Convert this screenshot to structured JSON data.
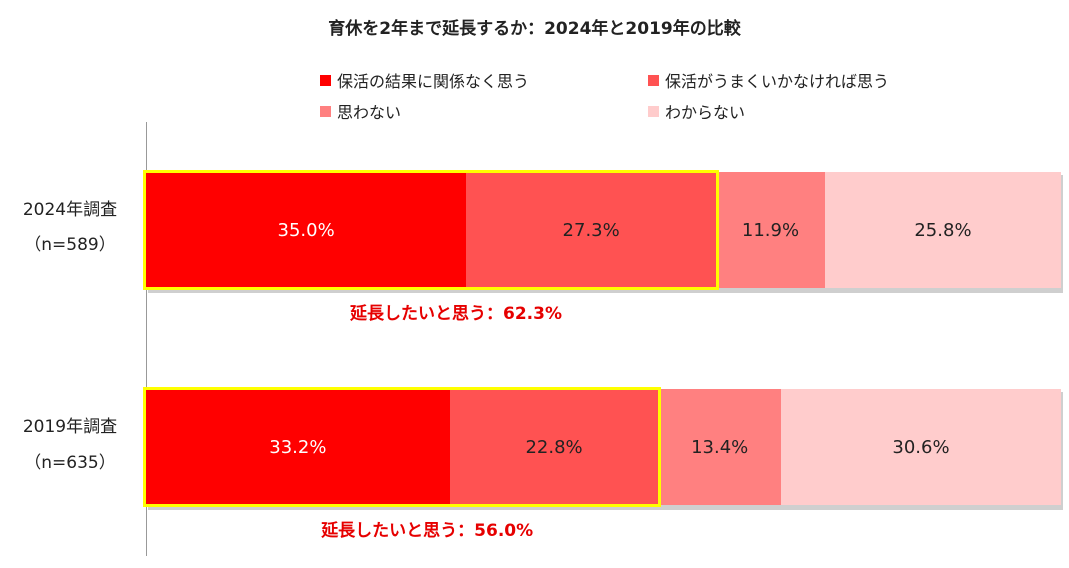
{
  "chart_data": {
    "type": "bar",
    "orientation": "horizontal-stacked-100",
    "title": "育休を2年まで延長するか：2024年と2019年の比較",
    "legend_placement": "top",
    "categories": [
      {
        "label": "2024年調査",
        "sublabel": "（n=589）"
      },
      {
        "label": "2019年調査",
        "sublabel": "（n=635）"
      }
    ],
    "series": [
      {
        "name": "保活の結果に関係なく思う",
        "color": "#ff0000",
        "text_color": "#ffffff",
        "values": [
          35.0,
          33.2
        ],
        "labels": [
          "35.0%",
          "33.2%"
        ]
      },
      {
        "name": "保活がうまくいかなければ思う",
        "color": "#ff5252",
        "text_color": "#222222",
        "values": [
          27.3,
          22.8
        ],
        "labels": [
          "27.3%",
          "22.8%"
        ]
      },
      {
        "name": "思わない",
        "color": "#ff8080",
        "text_color": "#222222",
        "values": [
          11.9,
          13.4
        ],
        "labels": [
          "11.9%",
          "13.4%"
        ]
      },
      {
        "name": "わからない",
        "color": "#ffcccc",
        "text_color": "#222222",
        "values": [
          25.8,
          30.6
        ],
        "labels": [
          "25.8%",
          "30.6%"
        ]
      }
    ],
    "annotations": [
      "延長したいと思う：62.3%",
      "延長したいと思う：56.0%"
    ],
    "highlight_color": "#ffff00",
    "annotation_color": "#e60000",
    "xlim": [
      0,
      100
    ],
    "grid": false
  }
}
